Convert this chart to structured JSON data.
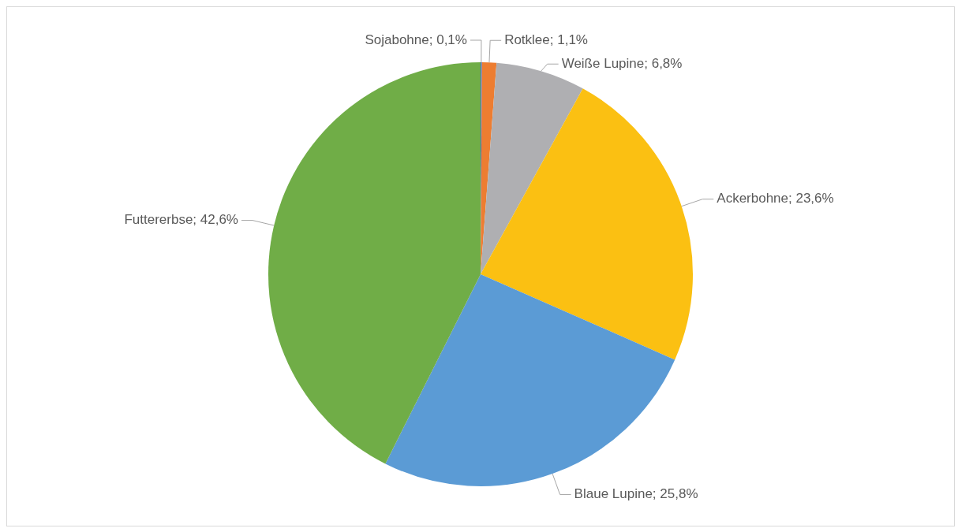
{
  "chart_data": {
    "type": "pie",
    "categories": [
      "Sojabohne",
      "Rotklee",
      "Weiße Lupine",
      "Ackerbohne",
      "Blaue Lupine",
      "Futtererbse"
    ],
    "values": [
      0.1,
      1.1,
      6.8,
      23.6,
      25.8,
      42.6
    ],
    "value_labels": [
      "0,1%",
      "1,1%",
      "6,8%",
      "23,6%",
      "25,8%",
      "42,6%"
    ],
    "colors": [
      "#4472c4",
      "#ed7d31",
      "#afafb2",
      "#fbc012",
      "#5b9bd5",
      "#70ad47"
    ],
    "legend": false
  }
}
